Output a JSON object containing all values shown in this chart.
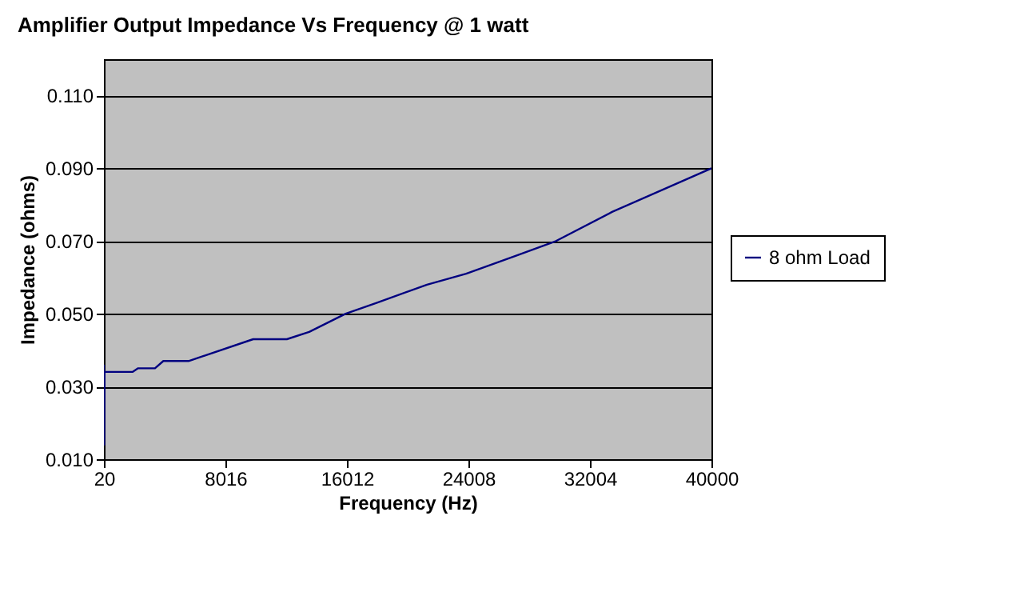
{
  "chart_data": {
    "type": "line",
    "title": "Amplifier Output Impedance Vs Frequency @ 1 watt",
    "xlabel": "Frequency (Hz)",
    "ylabel": "Impedance (ohms)",
    "x": [
      20,
      40,
      60,
      1900,
      2270,
      3380,
      3930,
      5590,
      9840,
      12060,
      13530,
      15930,
      17960,
      21280,
      23860,
      27180,
      29770,
      33460,
      40000
    ],
    "series": [
      {
        "name": "8 ohm Load",
        "color": "#000080",
        "values": [
          0.036,
          0.014,
          0.034,
          0.034,
          0.035,
          0.035,
          0.037,
          0.037,
          0.043,
          0.043,
          0.045,
          0.05,
          0.053,
          0.058,
          0.061,
          0.066,
          0.07,
          0.078,
          0.09
        ]
      }
    ],
    "xlim": [
      20,
      40000
    ],
    "xticks": [
      20,
      8016,
      16012,
      24008,
      32004,
      40000
    ],
    "ylim": [
      0.01,
      0.12
    ],
    "yticks": [
      {
        "value": 0.01,
        "label": "0.010"
      },
      {
        "value": 0.03,
        "label": "0.030"
      },
      {
        "value": 0.05,
        "label": "0.050"
      },
      {
        "value": 0.07,
        "label": "0.070"
      },
      {
        "value": 0.09,
        "label": "0.090"
      },
      {
        "value": 0.11,
        "label": "0.110"
      }
    ],
    "grid": "y",
    "legend": "right",
    "marker": "none",
    "line_style": "solid"
  }
}
